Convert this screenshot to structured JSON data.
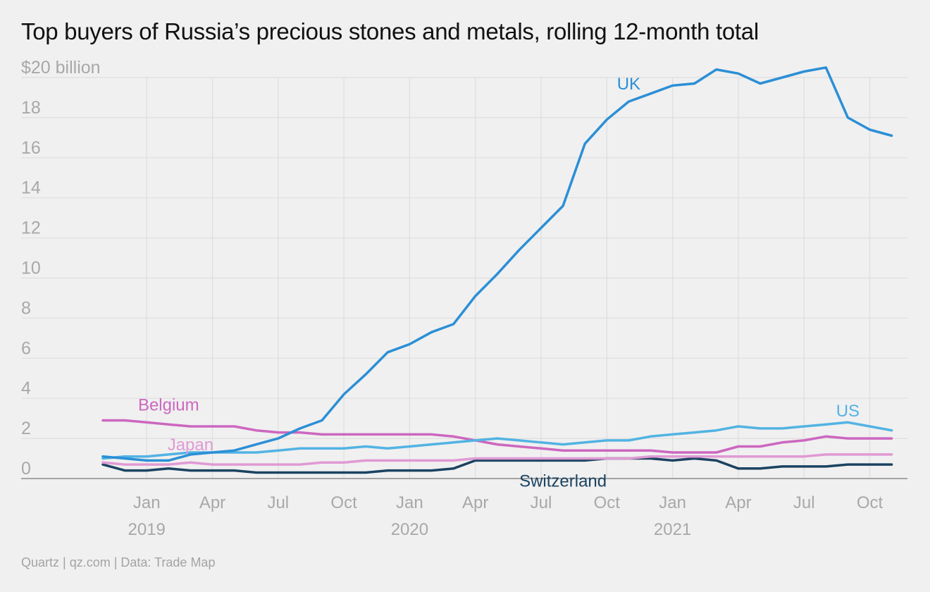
{
  "chart_data": {
    "type": "line",
    "title": "Top buyers of Russia’s precious stones and metals, rolling 12-month total",
    "source": "Quartz | qz.com | Data: Trade Map",
    "y_unit_label": "$20 billion",
    "ylim": [
      0,
      20
    ],
    "yticks": [
      0,
      2,
      4,
      6,
      8,
      10,
      12,
      14,
      16,
      18,
      20
    ],
    "x_start": "2018-11",
    "x_end": "2021-11",
    "xticks": [
      {
        "label": "Jan",
        "month": "2019-01"
      },
      {
        "label": "Apr",
        "month": "2019-04"
      },
      {
        "label": "Jul",
        "month": "2019-07"
      },
      {
        "label": "Oct",
        "month": "2019-10"
      },
      {
        "label": "Jan",
        "month": "2020-01"
      },
      {
        "label": "Apr",
        "month": "2020-04"
      },
      {
        "label": "Jul",
        "month": "2020-07"
      },
      {
        "label": "Oct",
        "month": "2020-10"
      },
      {
        "label": "Jan",
        "month": "2021-01"
      },
      {
        "label": "Apr",
        "month": "2021-04"
      },
      {
        "label": "Jul",
        "month": "2021-07"
      },
      {
        "label": "Oct",
        "month": "2021-10"
      }
    ],
    "year_labels": [
      {
        "label": "2019",
        "month": "2019-01"
      },
      {
        "label": "2020",
        "month": "2020-01"
      },
      {
        "label": "2021",
        "month": "2021-01"
      }
    ],
    "grid": true,
    "series": [
      {
        "name": "UK",
        "color": "#2b8fd6",
        "label_at": {
          "month": "2020-11",
          "value": 19.4
        },
        "values": [
          1.1,
          1.0,
          0.9,
          0.9,
          1.2,
          1.3,
          1.4,
          1.7,
          2.0,
          2.5,
          2.9,
          4.2,
          5.2,
          6.3,
          6.7,
          7.3,
          7.7,
          9.1,
          10.2,
          11.4,
          12.5,
          13.6,
          16.7,
          17.9,
          18.8,
          19.2,
          19.6,
          19.7,
          20.4,
          20.2,
          19.7,
          20.0,
          20.3,
          20.5,
          18.0,
          17.4,
          17.1
        ]
      },
      {
        "name": "US",
        "color": "#52b3e3",
        "label_at": {
          "month": "2021-09",
          "value": 3.1
        },
        "values": [
          1.0,
          1.1,
          1.1,
          1.2,
          1.3,
          1.3,
          1.3,
          1.3,
          1.4,
          1.5,
          1.5,
          1.5,
          1.6,
          1.5,
          1.6,
          1.7,
          1.8,
          1.9,
          2.0,
          1.9,
          1.8,
          1.7,
          1.8,
          1.9,
          1.9,
          2.1,
          2.2,
          2.3,
          2.4,
          2.6,
          2.5,
          2.5,
          2.6,
          2.7,
          2.8,
          2.6,
          2.4
        ]
      },
      {
        "name": "Belgium",
        "color": "#cc67bf",
        "label_at": {
          "month": "2019-02",
          "value": 3.4
        },
        "values": [
          2.9,
          2.9,
          2.8,
          2.7,
          2.6,
          2.6,
          2.6,
          2.4,
          2.3,
          2.3,
          2.2,
          2.2,
          2.2,
          2.2,
          2.2,
          2.2,
          2.1,
          1.9,
          1.7,
          1.6,
          1.5,
          1.4,
          1.4,
          1.4,
          1.4,
          1.4,
          1.3,
          1.3,
          1.3,
          1.6,
          1.6,
          1.8,
          1.9,
          2.1,
          2.0,
          2.0,
          2.0
        ]
      },
      {
        "name": "Japan",
        "color": "#e09ad4",
        "label_at": {
          "month": "2019-03",
          "value": 1.4
        },
        "values": [
          0.8,
          0.7,
          0.7,
          0.7,
          0.8,
          0.7,
          0.7,
          0.7,
          0.7,
          0.7,
          0.8,
          0.8,
          0.9,
          0.9,
          0.9,
          0.9,
          0.9,
          1.0,
          1.0,
          1.0,
          1.0,
          1.0,
          1.0,
          1.0,
          1.0,
          1.1,
          1.1,
          1.1,
          1.1,
          1.1,
          1.1,
          1.1,
          1.1,
          1.2,
          1.2,
          1.2,
          1.2
        ]
      },
      {
        "name": "Switzerland",
        "color": "#1b4361",
        "label_at": {
          "month": "2020-08",
          "value": -0.4
        },
        "values": [
          0.7,
          0.4,
          0.4,
          0.5,
          0.4,
          0.4,
          0.4,
          0.3,
          0.3,
          0.3,
          0.3,
          0.3,
          0.3,
          0.4,
          0.4,
          0.4,
          0.5,
          0.9,
          0.9,
          0.9,
          0.9,
          0.9,
          0.9,
          1.0,
          1.0,
          1.0,
          0.9,
          1.0,
          0.9,
          0.5,
          0.5,
          0.6,
          0.6,
          0.6,
          0.7,
          0.7,
          0.7
        ]
      }
    ]
  }
}
